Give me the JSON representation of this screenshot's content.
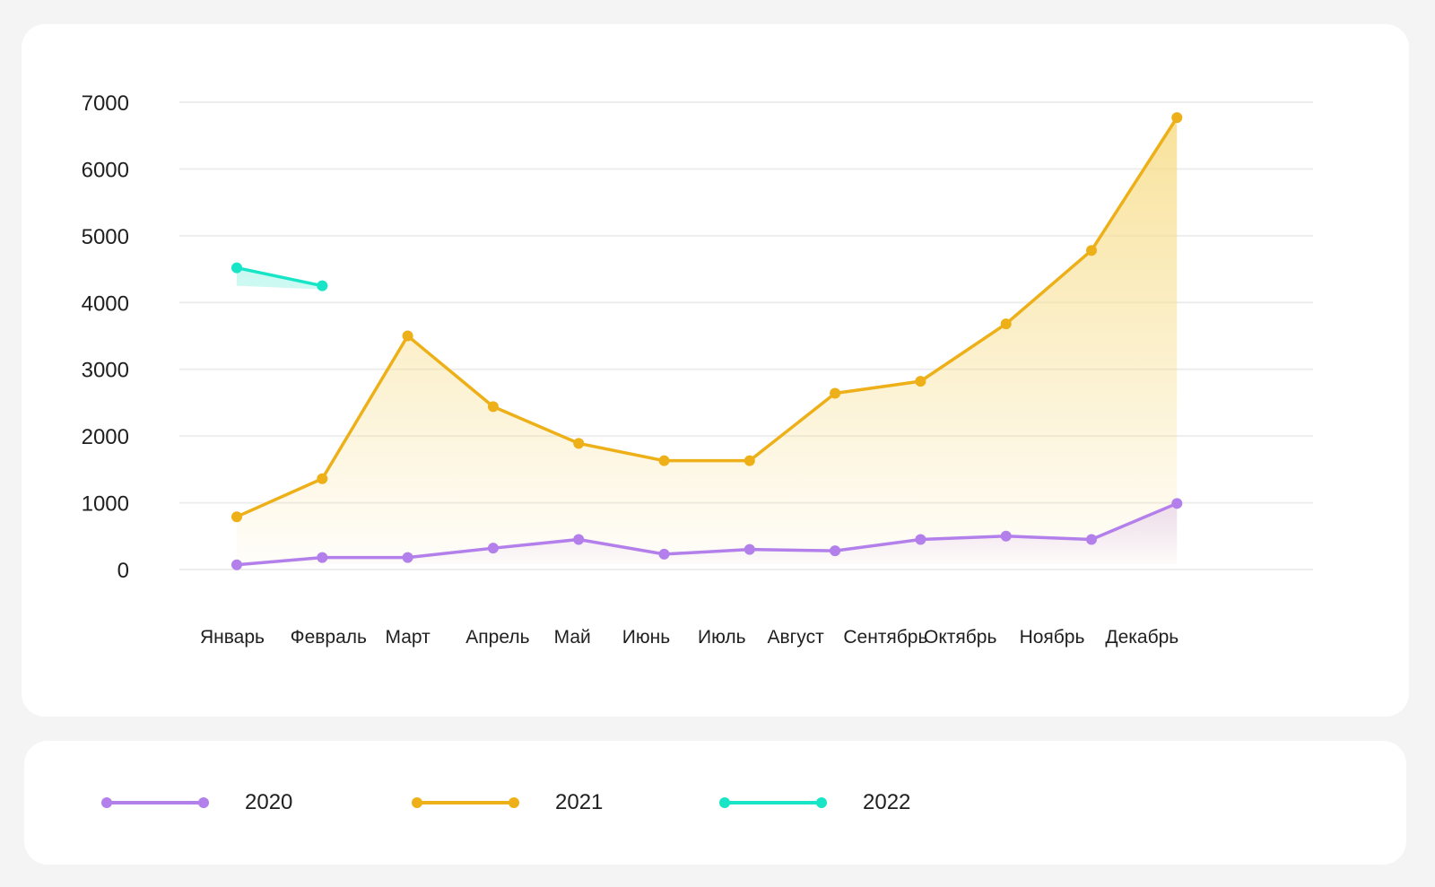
{
  "chart_data": {
    "type": "area",
    "categories": [
      "Январь",
      "Февраль",
      "Март",
      "Апрель",
      "Май",
      "Июнь",
      "Июль",
      "Август",
      "Сентябрь",
      "Октябрь",
      "Ноябрь",
      "Декабрь"
    ],
    "ylim": [
      0,
      7000
    ],
    "yticks": [
      0,
      1000,
      2000,
      3000,
      4000,
      5000,
      6000,
      7000
    ],
    "grid": true,
    "legend_position": "bottom",
    "series": [
      {
        "name": "2020",
        "color": "#b37feb",
        "fill": "#e8d6fb",
        "values": [
          70,
          180,
          180,
          320,
          450,
          230,
          300,
          280,
          450,
          500,
          450,
          990
        ]
      },
      {
        "name": "2021",
        "color": "#edb018",
        "fill": "#f7dd8a",
        "values": [
          790,
          1360,
          3500,
          2440,
          1890,
          1630,
          1630,
          2640,
          2820,
          3680,
          4780,
          6770
        ]
      },
      {
        "name": "2022",
        "color": "#17e5c6",
        "fill": "#a6f5e8",
        "values": [
          4520,
          4250,
          null,
          null,
          null,
          null,
          null,
          null,
          null,
          null,
          null,
          null
        ]
      }
    ]
  },
  "legend": {
    "items": [
      {
        "label": "2020",
        "color": "#b37feb"
      },
      {
        "label": "2021",
        "color": "#edb018"
      },
      {
        "label": "2022",
        "color": "#17e5c6"
      }
    ]
  }
}
